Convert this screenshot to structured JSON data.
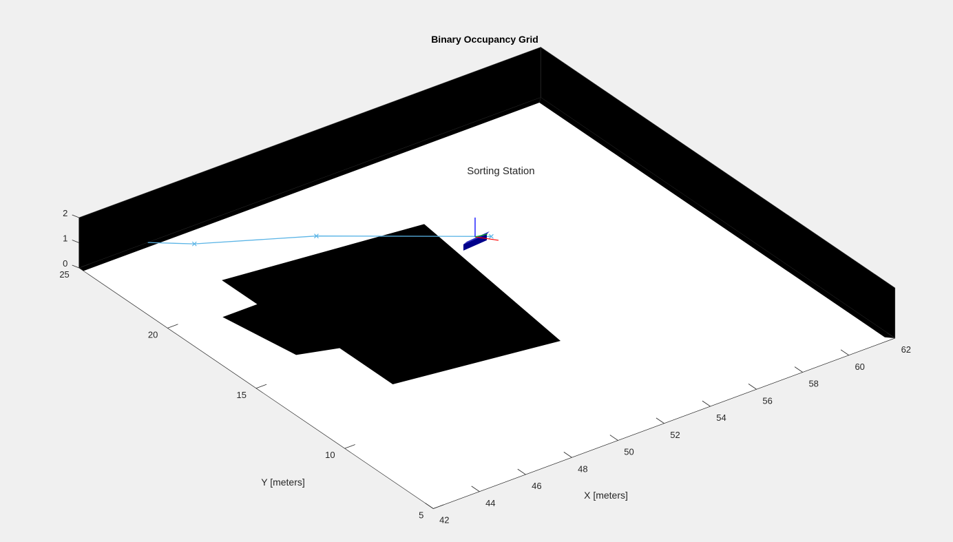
{
  "chart_data": {
    "type": "3d-occupancy-map",
    "title": "Binary Occupancy Grid",
    "xlabel": "X [meters]",
    "ylabel": "Y [meters]",
    "zlabel": "",
    "xlim": [
      42,
      62
    ],
    "ylim": [
      5,
      25
    ],
    "zlim": [
      0,
      2
    ],
    "x_ticks": [
      "42",
      "44",
      "46",
      "48",
      "50",
      "52",
      "54",
      "56",
      "58",
      "60",
      "62"
    ],
    "y_ticks": [
      "5",
      "10",
      "15",
      "20",
      "25"
    ],
    "z_ticks": [
      "0",
      "1",
      "2"
    ],
    "grid": false,
    "colors": {
      "background": "#f0f0f0",
      "free": "#ffffff",
      "occupied": "#000000",
      "path": "#5ab4e6",
      "robot": "#00008b",
      "frame_x": "#ff0000",
      "frame_y": "#00bb00",
      "frame_z": "#0000ff"
    },
    "walls": [
      {
        "name": "wall-back-y",
        "x": [
          42,
          62
        ],
        "y": [
          25,
          25
        ],
        "height": 2
      },
      {
        "name": "wall-back-x",
        "x": [
          62,
          62
        ],
        "y": [
          5,
          25
        ],
        "height": 2
      }
    ],
    "floor": {
      "x": [
        42,
        62
      ],
      "y": [
        5,
        25
      ]
    },
    "obstacles": [
      {
        "name": "obstacle-main",
        "polygon": [
          [
            45.5,
            21.5
          ],
          [
            53.5,
            20.5
          ],
          [
            52.5,
            11.5
          ],
          [
            46.0,
            12.5
          ],
          [
            46.0,
            15.5
          ],
          [
            44.5,
            16.0
          ],
          [
            44.0,
            19.5
          ],
          [
            45.5,
            19.5
          ]
        ]
      }
    ],
    "path": {
      "points": [
        [
          44.98,
          25.0
        ],
        [
          46.23,
          24.0
        ],
        [
          49.98,
          22.0
        ],
        [
          54.87,
          18.5
        ]
      ]
    },
    "annotation": {
      "text": "Sorting Station",
      "x": 55.2,
      "y": 20.3,
      "z": 1.5
    },
    "robot": {
      "x": 54.4,
      "y": 18.8,
      "z": 0
    }
  }
}
